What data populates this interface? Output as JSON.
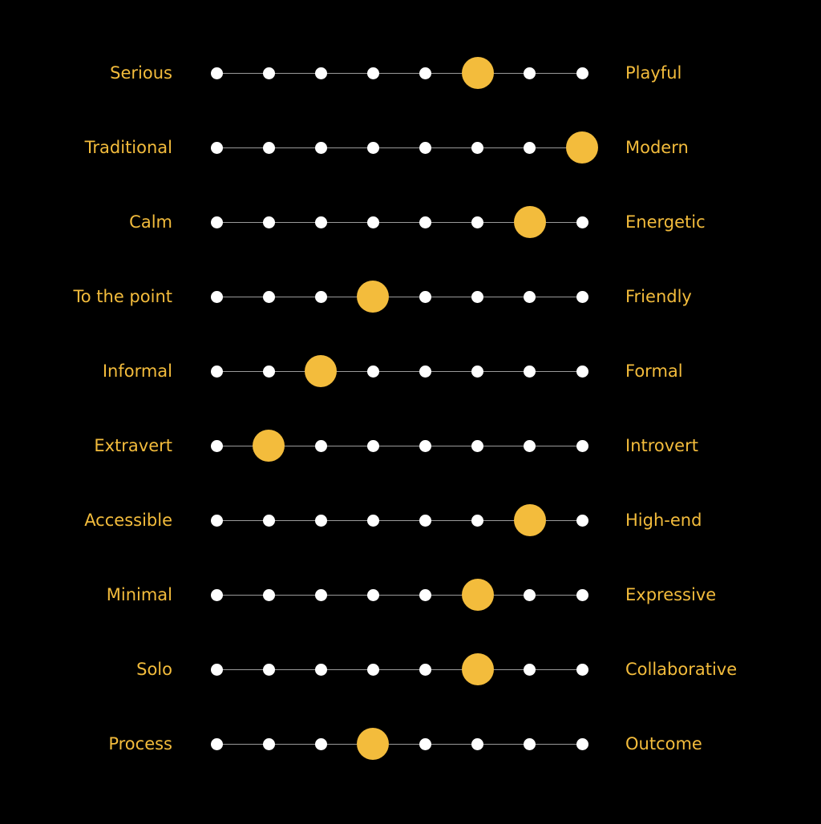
{
  "colors": {
    "background": "#000000",
    "accent": "#F3BC3C",
    "dot": "#FFFFFF",
    "track": "#9A9A9A"
  },
  "scale_steps": 8,
  "scales": [
    {
      "left": "Serious",
      "right": "Playful",
      "value": 6
    },
    {
      "left": "Traditional",
      "right": "Modern",
      "value": 8
    },
    {
      "left": "Calm",
      "right": "Energetic",
      "value": 7
    },
    {
      "left": "To the point",
      "right": "Friendly",
      "value": 4
    },
    {
      "left": "Informal",
      "right": "Formal",
      "value": 3
    },
    {
      "left": "Extravert",
      "right": "Introvert",
      "value": 2
    },
    {
      "left": "Accessible",
      "right": "High-end",
      "value": 7
    },
    {
      "left": "Minimal",
      "right": "Expressive",
      "value": 6
    },
    {
      "left": "Solo",
      "right": "Collaborative",
      "value": 6
    },
    {
      "left": "Process",
      "right": "Outcome",
      "value": 4
    }
  ]
}
